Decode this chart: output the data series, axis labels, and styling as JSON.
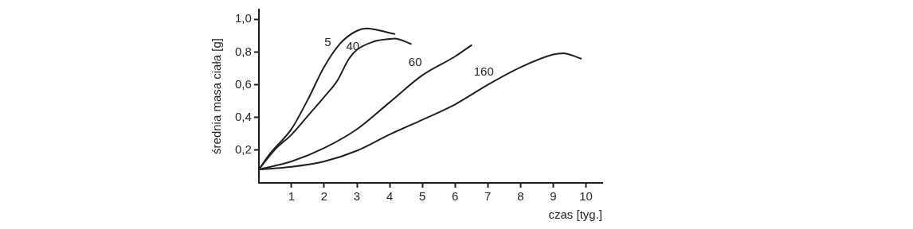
{
  "chart_data": {
    "type": "line",
    "xlabel": "czas [tyg.]",
    "ylabel": "średnia masa ciała [g]",
    "xlim": [
      0,
      10.5
    ],
    "ylim": [
      0,
      1.06
    ],
    "xticks": [
      1,
      2,
      3,
      4,
      5,
      6,
      7,
      8,
      9,
      10
    ],
    "yticks": [
      {
        "value": 0.2,
        "label": "0,2"
      },
      {
        "value": 0.4,
        "label": "0,4"
      },
      {
        "value": 0.6,
        "label": "0,6"
      },
      {
        "value": 0.8,
        "label": "0,8"
      },
      {
        "value": 1.0,
        "label": "1,0"
      }
    ],
    "grid": false,
    "legend": false,
    "marker": "none",
    "line_style": "solid",
    "series": [
      {
        "name": "5",
        "color": "#231f20",
        "x": [
          0,
          0.35,
          1,
          1.5,
          2,
          2.5,
          3,
          3.3,
          3.5,
          4.15
        ],
        "values": [
          0.082,
          0.18,
          0.33,
          0.51,
          0.71,
          0.855,
          0.93,
          0.944,
          0.94,
          0.91
        ]
      },
      {
        "name": "40",
        "color": "#231f20",
        "x": [
          0,
          0.5,
          1,
          1.5,
          2,
          2.4,
          2.75,
          3,
          3.5,
          4,
          4.15,
          4.65
        ],
        "values": [
          0.082,
          0.205,
          0.295,
          0.41,
          0.526,
          0.625,
          0.757,
          0.814,
          0.863,
          0.88,
          0.883,
          0.85
        ]
      },
      {
        "name": "60",
        "color": "#231f20",
        "x": [
          0,
          1,
          2,
          3,
          4,
          5,
          6,
          6.5
        ],
        "values": [
          0.082,
          0.131,
          0.213,
          0.328,
          0.493,
          0.658,
          0.773,
          0.842
        ]
      },
      {
        "name": "160",
        "color": "#231f20",
        "x": [
          0,
          1,
          2,
          3,
          4,
          5,
          6,
          7,
          8,
          9,
          9.3,
          9.85
        ],
        "values": [
          0.082,
          0.098,
          0.131,
          0.197,
          0.296,
          0.386,
          0.48,
          0.6,
          0.707,
          0.785,
          0.793,
          0.76
        ]
      }
    ]
  }
}
